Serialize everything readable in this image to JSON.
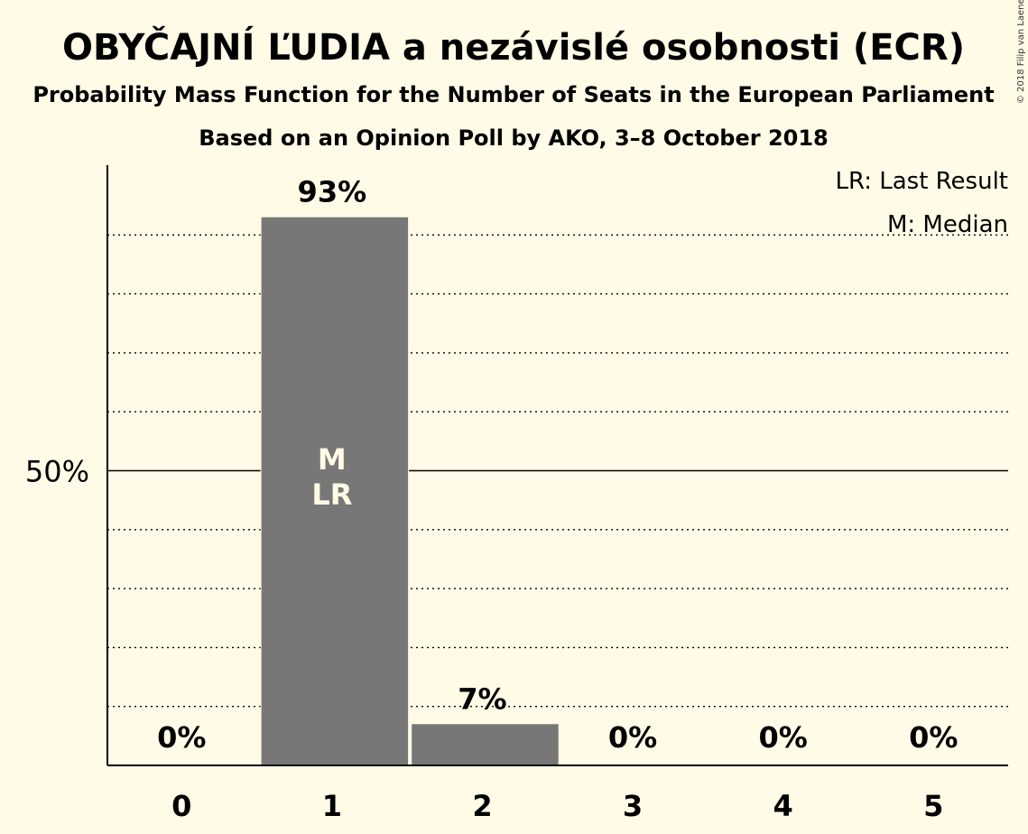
{
  "title": "OBYČAJNÍ ĽUDIA a nezávislé osobnosti (ECR)",
  "subtitle1": "Probability Mass Function for the Number of Seats in the European Parliament",
  "subtitle2": "Based on an Opinion Poll by AKO, 3–8 October 2018",
  "copyright": "© 2018 Filip van Laenen",
  "legend": [
    "LR: Last Result",
    "M: Median"
  ],
  "colors": {
    "background": "#fffbe6",
    "bar": "#777777",
    "text": "#111111"
  },
  "chart_data": {
    "type": "bar",
    "categories": [
      "0",
      "1",
      "2",
      "3",
      "4",
      "5"
    ],
    "values": [
      0,
      93,
      7,
      0,
      0,
      0
    ],
    "value_labels": [
      "0%",
      "93%",
      "7%",
      "0%",
      "0%",
      "0%"
    ],
    "bar_annotations": {
      "1": [
        "M",
        "LR"
      ]
    },
    "ylim": [
      0,
      100
    ],
    "y_tick_labels": [
      {
        "value": 50,
        "label": "50%"
      }
    ],
    "gridlines": [
      10,
      20,
      30,
      40,
      50,
      60,
      70,
      80,
      90
    ],
    "major_gridline": 50,
    "legend_position": "top-right"
  }
}
